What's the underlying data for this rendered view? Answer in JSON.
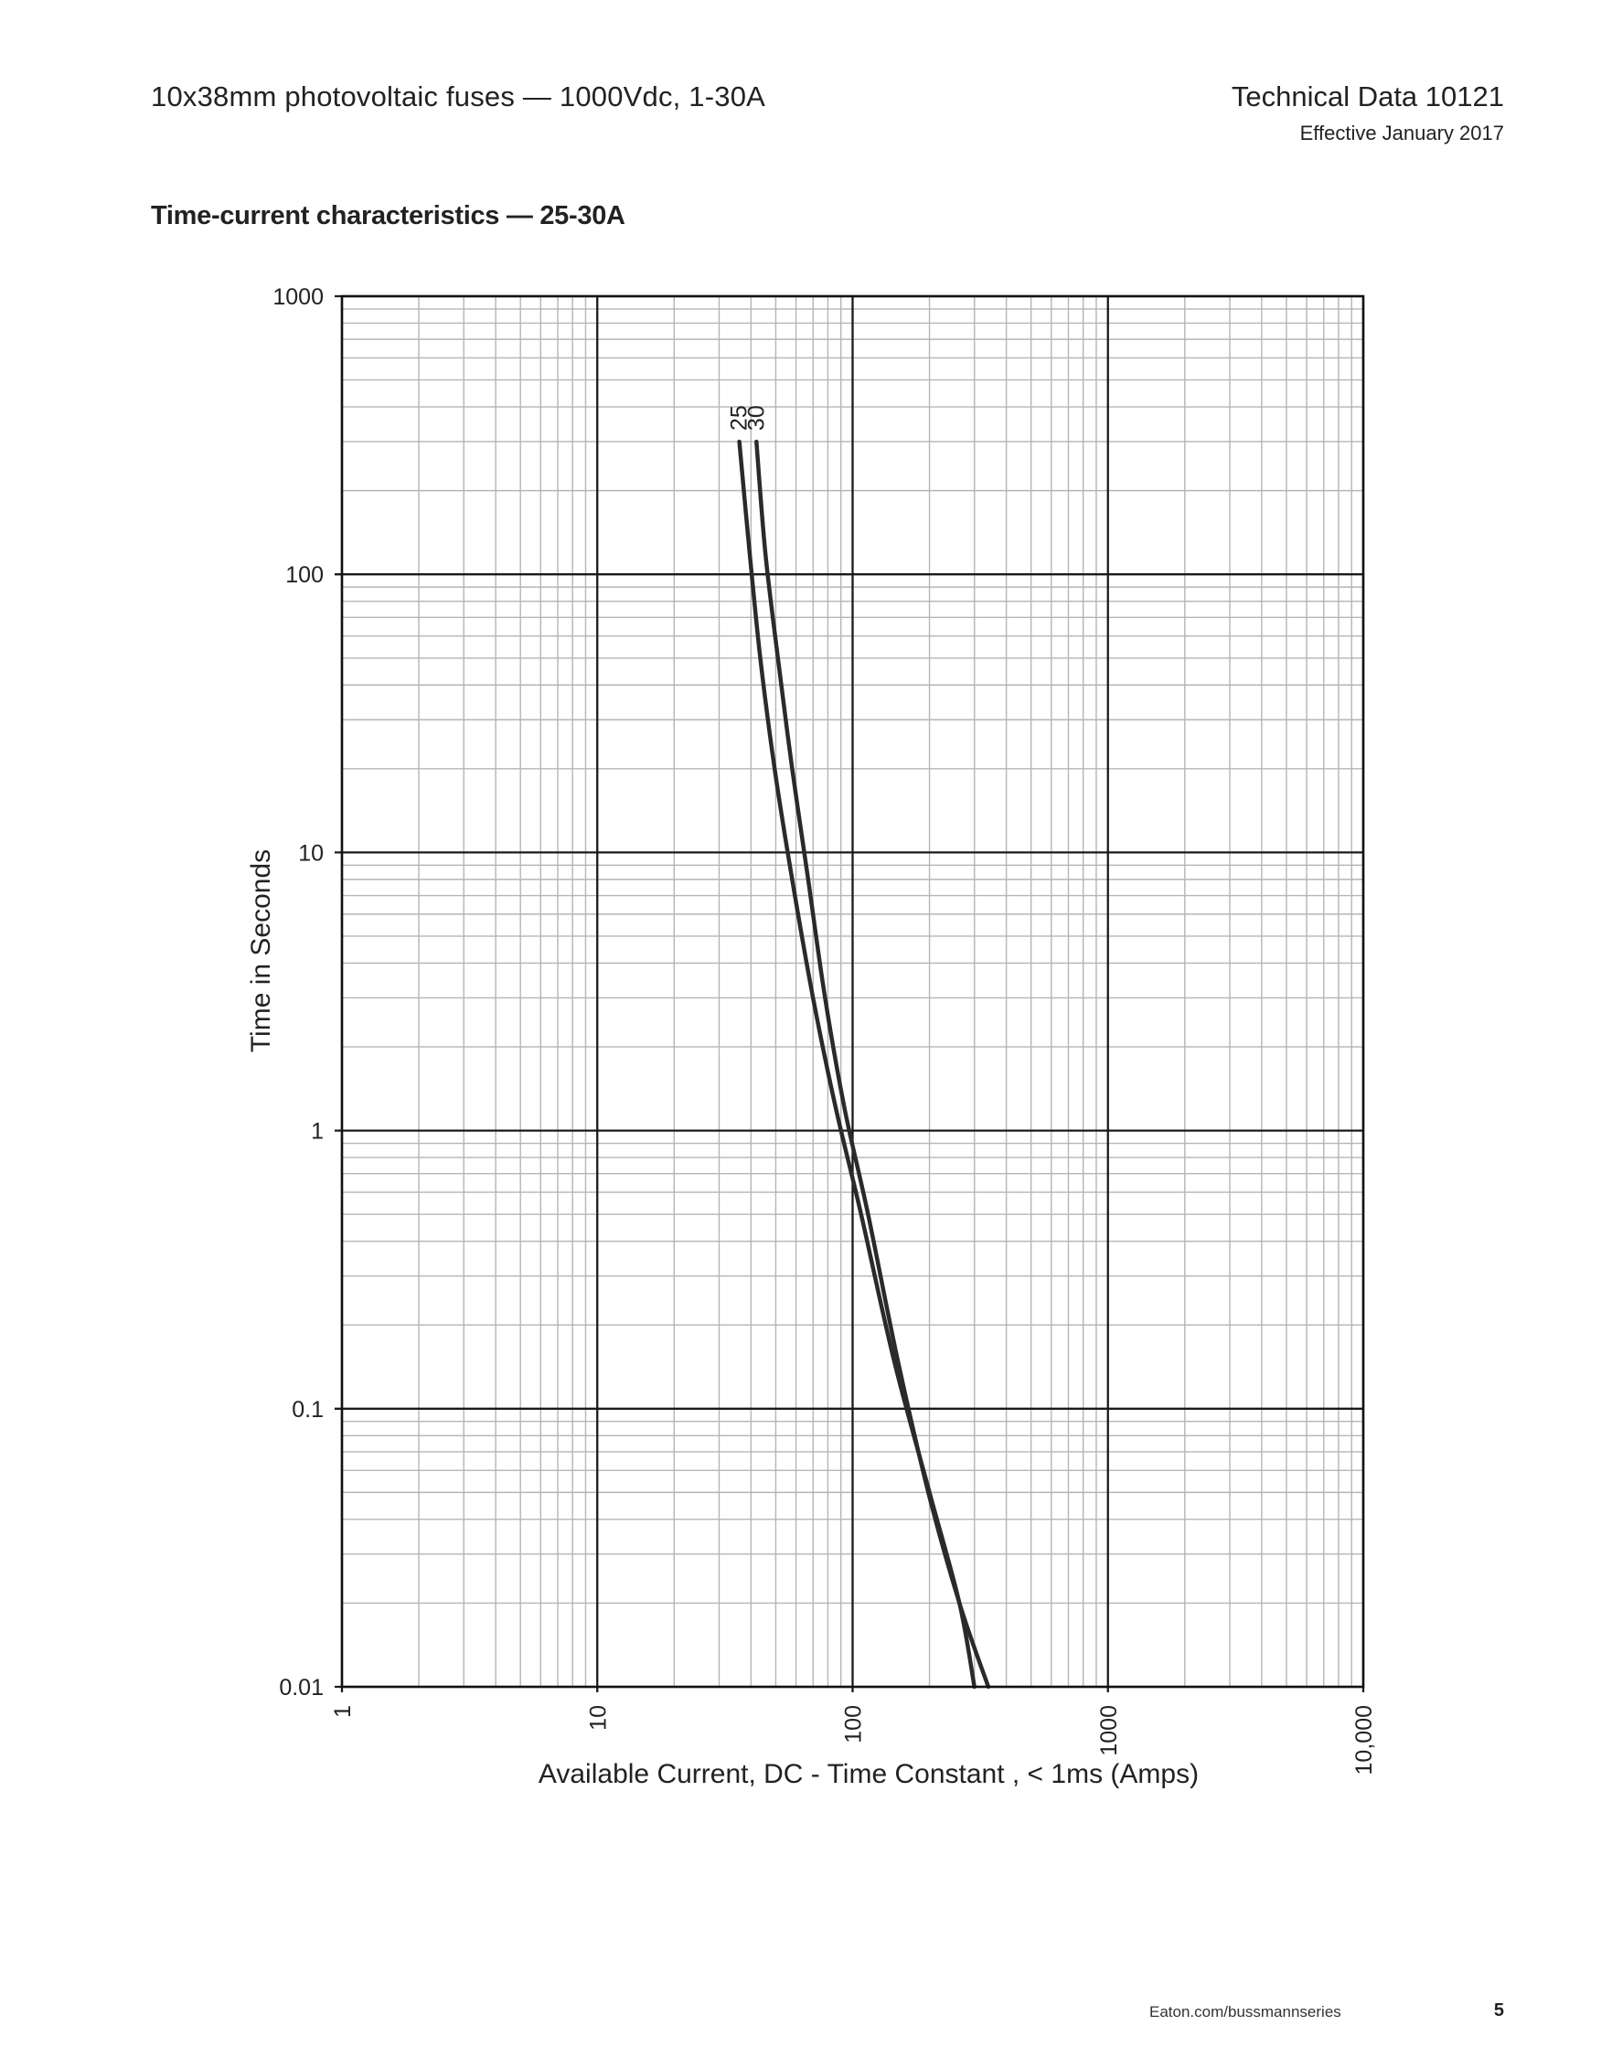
{
  "header": {
    "doc_title": "10x38mm photovoltaic fuses — 1000Vdc, 1-30A",
    "doc_number": "Technical Data 10121",
    "effective_date": "Effective January 2017"
  },
  "section_title": "Time-current characteristics — 25-30A",
  "footer": {
    "url": "Eaton.com/bussmannseries",
    "page_number": "5"
  },
  "chart_data": {
    "type": "line",
    "title": "Time-current characteristics — 25-30A",
    "xlabel": "Available Current, DC - Time Constant , < 1ms (Amps)",
    "ylabel": "Time in Seconds",
    "x_scale": "log",
    "y_scale": "log",
    "xlim": [
      1,
      10000
    ],
    "ylim": [
      0.01,
      1000
    ],
    "x_ticks": [
      1,
      10,
      100,
      1000,
      10000
    ],
    "x_tick_labels": [
      "1",
      "10",
      "100",
      "1000",
      "10,000"
    ],
    "y_ticks": [
      0.01,
      0.1,
      1,
      10,
      100,
      1000
    ],
    "y_tick_labels": [
      "0.01",
      "0.1",
      "1",
      "10",
      "100",
      "1000"
    ],
    "grid": true,
    "legend": "none",
    "series": [
      {
        "name": "25",
        "x": [
          36.0,
          39.5,
          43.5,
          49.5,
          58.0,
          70.0,
          86.0,
          108.0,
          145.0,
          200.0,
          262.0,
          300.0
        ],
        "y": [
          300,
          120,
          50,
          20,
          8,
          3,
          1.2,
          0.5,
          0.15,
          0.05,
          0.02,
          0.01
        ]
      },
      {
        "name": "30",
        "x": [
          42.0,
          45.5,
          51.0,
          58.0,
          67.0,
          78.0,
          93.0,
          115.0,
          150.0,
          198.0,
          262.0,
          340.0
        ],
        "y": [
          300,
          120,
          50,
          20,
          8,
          3,
          1.2,
          0.5,
          0.15,
          0.05,
          0.02,
          0.01
        ]
      }
    ],
    "colors": {
      "curve": "#2a2a2a",
      "major_grid": "#1a1a1a",
      "minor_grid": "#b5b5b5"
    }
  }
}
